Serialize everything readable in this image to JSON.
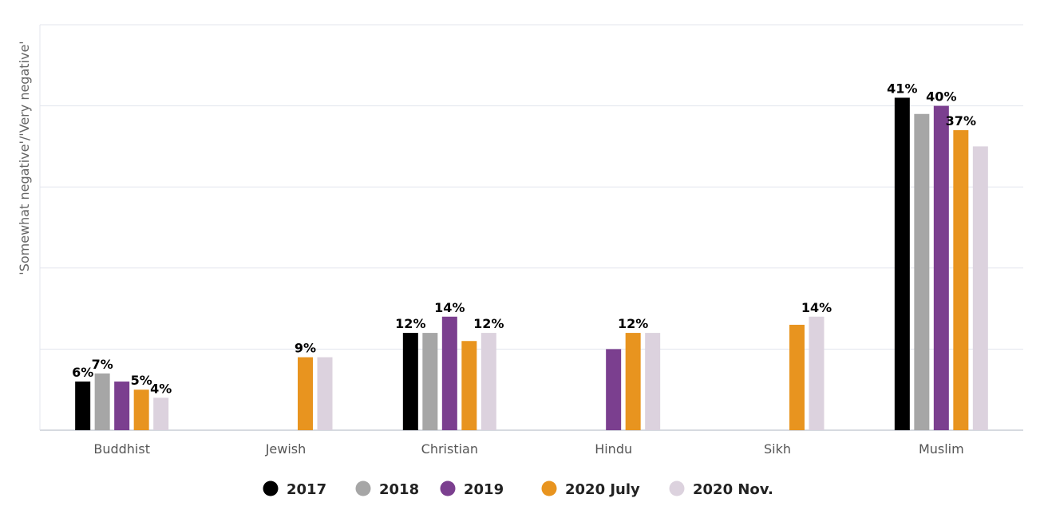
{
  "chart_data": {
    "type": "bar",
    "ylabel": "'Somewhat negative'/'Very negative'",
    "ylim": [
      0,
      50
    ],
    "grid": true,
    "legend_position": "bottom",
    "categories": [
      "Buddhist",
      "Jewish",
      "Christian",
      "Hindu",
      "Sikh",
      "Muslim"
    ],
    "series": [
      {
        "name": "2017",
        "color": "#000000",
        "values": [
          6,
          null,
          12,
          null,
          null,
          41
        ],
        "labels": [
          "6%",
          null,
          "12%",
          null,
          null,
          "41%"
        ]
      },
      {
        "name": "2018",
        "color": "#a6a6a6",
        "values": [
          7,
          null,
          12,
          null,
          null,
          39
        ],
        "labels": [
          "7%",
          null,
          null,
          null,
          null,
          null
        ]
      },
      {
        "name": "2019",
        "color": "#7b3f8f",
        "values": [
          6,
          null,
          14,
          10,
          null,
          40
        ],
        "labels": [
          null,
          null,
          "14%",
          null,
          null,
          "40%"
        ]
      },
      {
        "name": "2020 July",
        "color": "#e8941f",
        "values": [
          5,
          9,
          11,
          12,
          13,
          37
        ],
        "labels": [
          "5%",
          "9%",
          null,
          "12%",
          null,
          "37%"
        ]
      },
      {
        "name": "2020 Nov.",
        "color": "#dcd2de",
        "values": [
          4,
          9,
          12,
          12,
          14,
          35
        ],
        "labels": [
          "4%",
          null,
          "12%",
          null,
          "14%",
          null
        ]
      }
    ]
  }
}
